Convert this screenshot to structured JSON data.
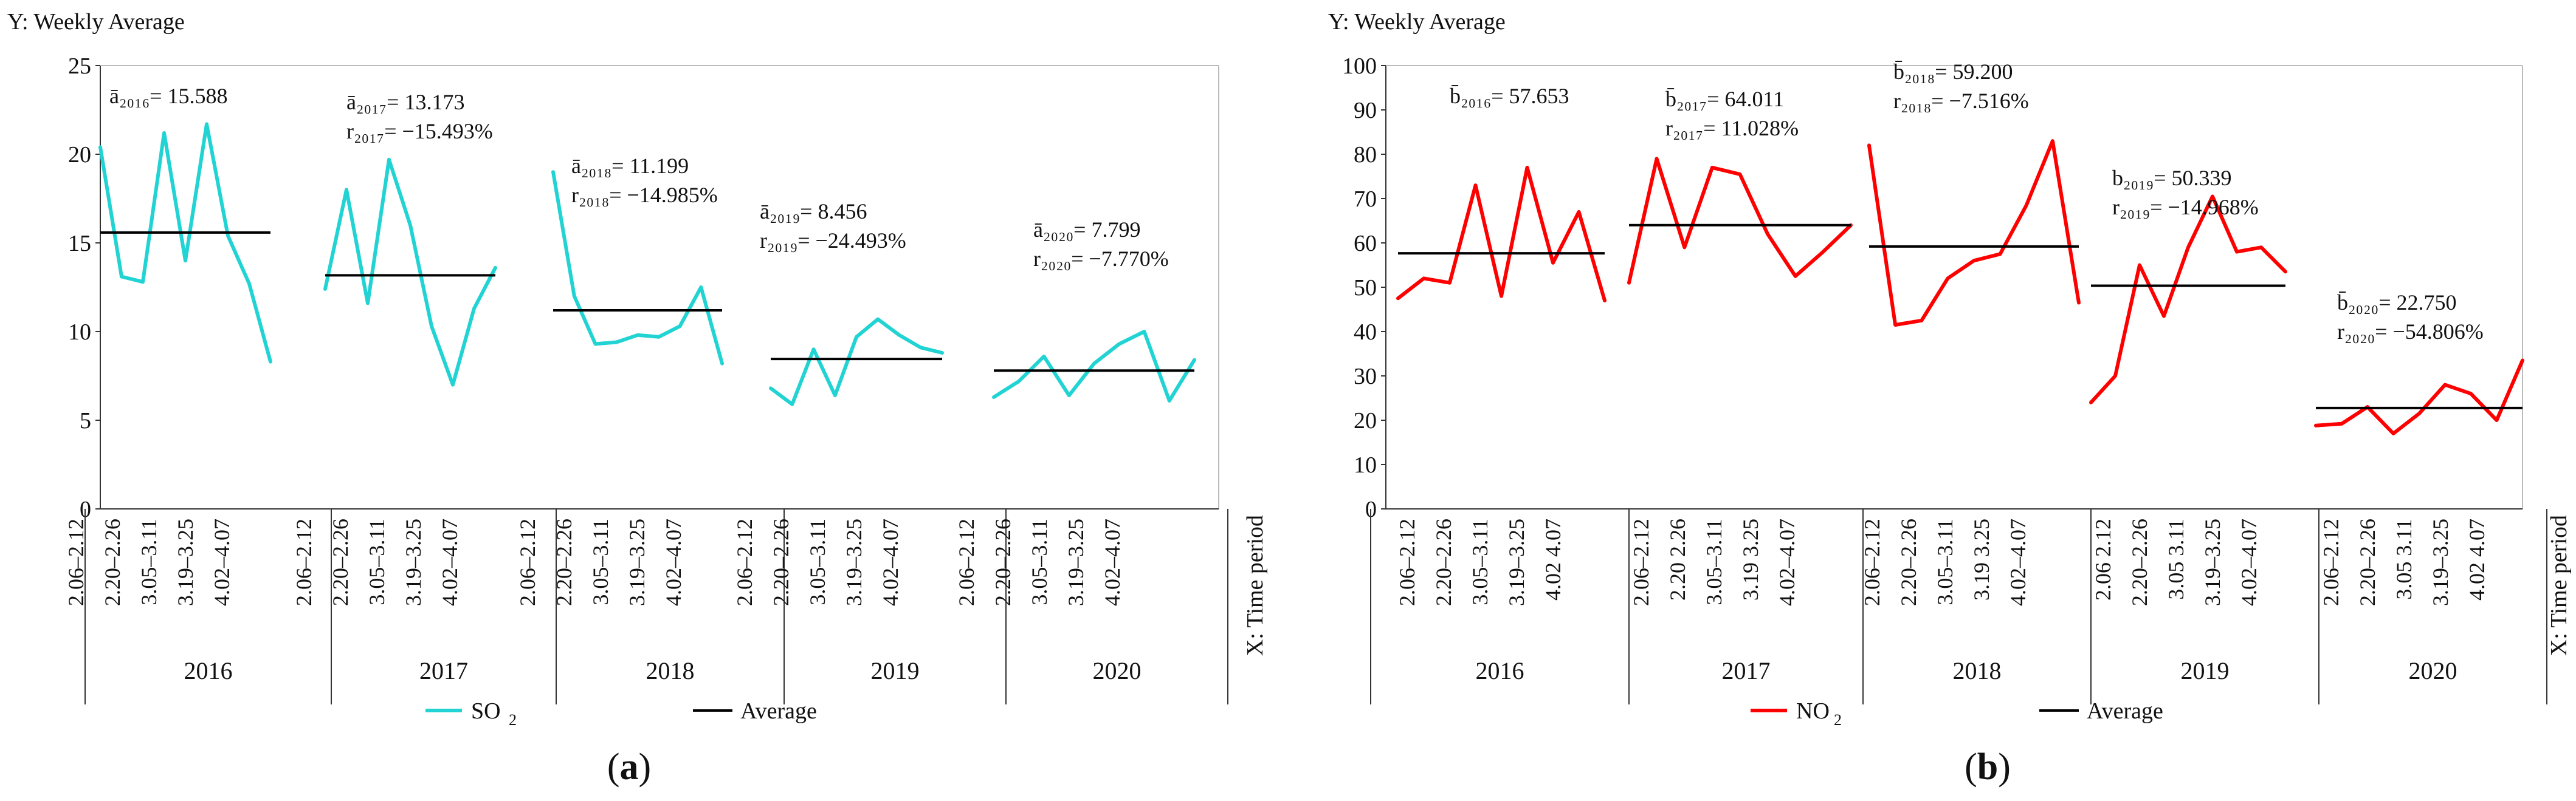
{
  "figure": {
    "panel_labels": [
      "(a)",
      "(b)"
    ]
  },
  "chart_data": [
    {
      "type": "line",
      "panel": "(a)",
      "ylabel": "Y: Weekly Average",
      "xlabel": "X: Time period",
      "ylim": [
        0,
        25
      ],
      "yticks": [
        "0",
        "5",
        "10",
        "15",
        "20",
        "25"
      ],
      "ytick_values": [
        0,
        5,
        10,
        15,
        20,
        25
      ],
      "grid": false,
      "legend": {
        "position": "bottom-center",
        "series_label": "SO",
        "series_sub": "2",
        "average_label": "Average"
      },
      "series_color": "#22D3D3",
      "average_color": "#000000",
      "years": [
        {
          "year": "2016",
          "ticks": [
            "2.06–2.12",
            "2.20–2.26",
            "3.05–3.11",
            "3.19–3.25",
            "4.02–4.07"
          ],
          "values": [
            20.4,
            13.1,
            12.8,
            21.2,
            14.0,
            21.7,
            15.4,
            12.7,
            8.3
          ],
          "average": 15.588,
          "annotation": [
            "ā₂₀₁₆= 15.588"
          ]
        },
        {
          "year": "2017",
          "ticks": [
            "2.06–2.12",
            "2.20–2.26",
            "3.05–3.11",
            "3.19–3.25",
            "4.02–4.07"
          ],
          "values": [
            12.4,
            18.0,
            11.6,
            19.7,
            16.0,
            10.3,
            7.0,
            11.3,
            13.6
          ],
          "average": 13.173,
          "annotation": [
            "ā₂₀₁₇= 13.173",
            "r₂₀₁₇= −15.493%"
          ]
        },
        {
          "year": "2018",
          "ticks": [
            "2.06–2.12",
            "2.20–2.26",
            "3.05–3.11",
            "3.19–3.25",
            "4.02–4.07"
          ],
          "values": [
            19.0,
            12.0,
            9.3,
            9.4,
            9.8,
            9.7,
            10.3,
            12.5,
            8.2
          ],
          "average": 11.199,
          "annotation": [
            "ā₂₀₁₈= 11.199",
            "r₂₀₁₈= −14.985%"
          ]
        },
        {
          "year": "2019",
          "ticks": [
            "2.06–2.12",
            "2.20–2.26",
            "3.05–3.11",
            "3.19–3.25",
            "4.02–4.07"
          ],
          "values": [
            6.8,
            5.9,
            9.0,
            6.4,
            9.7,
            10.7,
            9.8,
            9.1,
            8.8
          ],
          "average": 8.456,
          "annotation": [
            "ā₂₀₁₉= 8.456",
            "r₂₀₁₉= −24.493%"
          ]
        },
        {
          "year": "2020",
          "ticks": [
            "2.06–2.12",
            "2.20–2.26",
            "3.05–3.11",
            "3.19–3.25",
            "4.02–4.07"
          ],
          "values": [
            6.3,
            7.2,
            8.6,
            6.4,
            8.2,
            9.3,
            10.0,
            6.1,
            8.4
          ],
          "average": 7.799,
          "annotation": [
            "ā₂₀₂₀= 7.799",
            "r₂₀₂₀= −7.770%"
          ]
        }
      ]
    },
    {
      "type": "line",
      "panel": "(b)",
      "ylabel": "Y: Weekly Average",
      "xlabel": "X: Time period",
      "ylim": [
        0,
        100
      ],
      "yticks": [
        "0",
        "10",
        "20",
        "30",
        "40",
        "50",
        "60",
        "70",
        "80",
        "90",
        "100"
      ],
      "ytick_values": [
        0,
        10,
        20,
        30,
        40,
        50,
        60,
        70,
        80,
        90,
        100
      ],
      "grid": false,
      "legend": {
        "position": "bottom-center",
        "series_label": "NO",
        "series_sub": "2",
        "average_label": "Average"
      },
      "series_color": "#FF0000",
      "average_color": "#000000",
      "years": [
        {
          "year": "2016",
          "ticks": [
            "2.06–2.12",
            "2.20–2.26",
            "3.05–3.11",
            "3.19–3.25",
            "4.02 4.07"
          ],
          "values": [
            47.5,
            52.0,
            51.0,
            73.0,
            48.0,
            77.0,
            55.5,
            67.0,
            47.0
          ],
          "average": 57.653,
          "annotation": [
            "b̄₂₀₁₆= 57.653"
          ]
        },
        {
          "year": "2017",
          "ticks": [
            "2.06–2.12",
            "2.20 2.26",
            "3.05–3.11",
            "3.19 3.25",
            "4.02–4.07"
          ],
          "values": [
            51.0,
            79.0,
            59.0,
            77.0,
            75.5,
            62.0,
            52.5,
            58.0,
            64.0
          ],
          "average": 64.011,
          "annotation": [
            "b̄₂₀₁₇= 64.011",
            "r₂₀₁₇= 11.028%"
          ]
        },
        {
          "year": "2018",
          "ticks": [
            "2.06–2.12",
            "2.20–2.26",
            "3.05–3.11",
            "3.19 3.25",
            "4.02–4.07"
          ],
          "values": [
            82.0,
            41.5,
            42.5,
            52.0,
            56.0,
            57.5,
            68.5,
            83.0,
            46.5
          ],
          "average": 59.2,
          "annotation": [
            "b̄₂₀₁₈= 59.200",
            "r₂₀₁₈= −7.516%"
          ]
        },
        {
          "year": "2019",
          "ticks": [
            "2.06 2.12",
            "2.20–2.26",
            "3.05 3.11",
            "3.19–3.25",
            "4.02–4.07"
          ],
          "values": [
            24.0,
            30.0,
            55.0,
            43.5,
            59.0,
            70.5,
            58.0,
            59.0,
            53.5
          ],
          "average": 50.339,
          "annotation": [
            "b₂₀₁₉= 50.339",
            "r₂₀₁₉= −14.968%"
          ]
        },
        {
          "year": "2020",
          "ticks": [
            "2.06–2.12",
            "2.20–2.26",
            "3.05 3.11",
            "3.19–3.25",
            "4.02 4.07"
          ],
          "values": [
            18.8,
            19.2,
            23.0,
            17.0,
            21.5,
            28.0,
            26.0,
            20.0,
            33.5
          ],
          "average": 22.75,
          "annotation": [
            "b̄₂₀₂₀= 22.750",
            "r₂₀₂₀= −54.806%"
          ]
        }
      ]
    }
  ]
}
